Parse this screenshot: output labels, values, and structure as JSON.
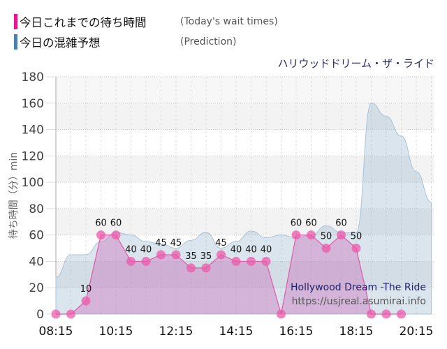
{
  "legend": {
    "today": {
      "label_jp": "今日これまでの待ち時間",
      "label_en": "(Today's wait times)",
      "color": "#e8168c"
    },
    "prediction": {
      "label_jp": "今日の混雑予想",
      "label_en": "(Prediction)",
      "color": "#4a7fb0"
    }
  },
  "ride_name_jp": "ハリウッドドリーム・ザ・ライド",
  "watermark": {
    "title": "Hollywood Dream -The Ride",
    "url": "https://usjreal.asumirai.info"
  },
  "chart_data": {
    "type": "area",
    "title": "ハリウッドドリーム・ザ・ライド",
    "xlabel": "",
    "ylabel": "待ち時間（分）min",
    "ylim": [
      0,
      180
    ],
    "yticks": [
      0,
      20,
      40,
      60,
      80,
      100,
      120,
      140,
      160,
      180
    ],
    "xtick_labels": [
      "08:15",
      "10:15",
      "12:15",
      "14:15",
      "16:15",
      "18:15",
      "20:15"
    ],
    "grid": true,
    "legend_position": "top-left",
    "series": [
      {
        "name": "今日これまでの待ち時間 (Today's wait times)",
        "color": "#e8168c",
        "x": [
          "08:15",
          "08:45",
          "09:15",
          "09:45",
          "10:15",
          "10:45",
          "11:15",
          "11:45",
          "12:15",
          "12:45",
          "13:15",
          "13:45",
          "14:15",
          "14:45",
          "15:15",
          "15:45",
          "16:15",
          "16:45",
          "17:15",
          "17:45",
          "18:15",
          "18:45",
          "19:15",
          "19:45"
        ],
        "values": [
          0,
          0,
          10,
          60,
          60,
          40,
          40,
          45,
          45,
          35,
          35,
          45,
          40,
          40,
          40,
          0,
          60,
          60,
          50,
          60,
          50,
          0,
          0,
          0
        ],
        "labels": [
          "",
          "",
          "10",
          "60",
          "60",
          "40",
          "40",
          "45",
          "45",
          "35",
          "35",
          "45",
          "40",
          "40",
          "40",
          "",
          "60",
          "60",
          "50",
          "60",
          "50",
          "",
          "",
          ""
        ]
      },
      {
        "name": "今日の混雑予想 (Prediction)",
        "color": "#4a7fb0",
        "x": [
          "08:15",
          "08:45",
          "09:15",
          "09:45",
          "10:15",
          "10:45",
          "11:15",
          "11:45",
          "12:15",
          "12:45",
          "13:15",
          "13:45",
          "14:15",
          "14:45",
          "15:15",
          "15:45",
          "16:15",
          "16:45",
          "17:15",
          "17:45",
          "18:15",
          "18:45",
          "19:15",
          "19:45",
          "20:15",
          "20:45"
        ],
        "values": [
          28,
          45,
          45,
          55,
          62,
          60,
          55,
          53,
          50,
          56,
          62,
          50,
          55,
          63,
          58,
          60,
          58,
          60,
          67,
          62,
          62,
          160,
          150,
          135,
          108,
          85
        ]
      }
    ]
  }
}
